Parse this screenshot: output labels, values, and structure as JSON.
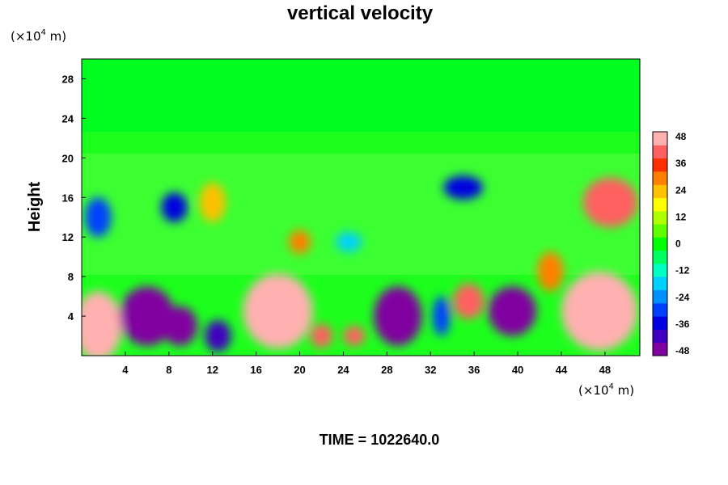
{
  "chart_data": {
    "type": "heatmap",
    "title": "vertical velocity",
    "ylabel": "Height",
    "y_unit": "(×10",
    "y_unit_exp": "4",
    "y_unit_tail": " m)",
    "x_unit": "(×10",
    "x_unit_exp": "4",
    "x_unit_tail": " m)",
    "footer": "TIME = 1022640.0",
    "xlim": [
      0,
      51.2
    ],
    "ylim": [
      0,
      30
    ],
    "x_ticks": [
      "4",
      "8",
      "12",
      "16",
      "20",
      "24",
      "28",
      "32",
      "36",
      "40",
      "44",
      "48"
    ],
    "x_tick_values": [
      4,
      8,
      12,
      16,
      20,
      24,
      28,
      32,
      36,
      40,
      44,
      48
    ],
    "y_ticks": [
      "4",
      "8",
      "12",
      "16",
      "20",
      "24",
      "28"
    ],
    "y_tick_values": [
      4,
      8,
      12,
      16,
      20,
      24,
      28
    ],
    "colorbar": {
      "range": [
        -48,
        48
      ],
      "ticks": [
        "48",
        "36",
        "24",
        "12",
        "0",
        "-12",
        "-24",
        "-36",
        "-48"
      ],
      "tick_values": [
        48,
        36,
        24,
        12,
        0,
        -12,
        -24,
        -36,
        -48
      ],
      "colors": [
        "#8000a0",
        "#4000c0",
        "#0000e0",
        "#0040ff",
        "#0090ff",
        "#00d0ff",
        "#00ffc0",
        "#00ff60",
        "#00ff00",
        "#60ff00",
        "#b0ff00",
        "#ffff00",
        "#ffc000",
        "#ff8000",
        "#ff3000",
        "#ff6060",
        "#ffb0b0"
      ]
    },
    "regions": [
      {
        "cx": 1.5,
        "cy": 3.0,
        "rx": 2.2,
        "ry": 3.5,
        "value": 46
      },
      {
        "cx": 6.0,
        "cy": 4.0,
        "rx": 2.5,
        "ry": 3.0,
        "value": -48
      },
      {
        "cx": 9.0,
        "cy": 3.0,
        "rx": 1.6,
        "ry": 2.0,
        "value": -48
      },
      {
        "cx": 12.5,
        "cy": 2.0,
        "rx": 1.2,
        "ry": 1.6,
        "value": -44
      },
      {
        "cx": 18.0,
        "cy": 4.5,
        "rx": 3.2,
        "ry": 3.8,
        "value": 48
      },
      {
        "cx": 22.0,
        "cy": 2.0,
        "rx": 1.0,
        "ry": 1.2,
        "value": 44
      },
      {
        "cx": 25.0,
        "cy": 2.0,
        "rx": 1.0,
        "ry": 1.0,
        "value": 44
      },
      {
        "cx": 29.0,
        "cy": 4.0,
        "rx": 2.2,
        "ry": 3.0,
        "value": -48
      },
      {
        "cx": 33.0,
        "cy": 4.0,
        "rx": 0.8,
        "ry": 2.0,
        "value": -30
      },
      {
        "cx": 35.5,
        "cy": 5.5,
        "rx": 1.4,
        "ry": 1.8,
        "value": 40
      },
      {
        "cx": 39.5,
        "cy": 4.5,
        "rx": 2.2,
        "ry": 2.5,
        "value": -48
      },
      {
        "cx": 47.5,
        "cy": 4.5,
        "rx": 3.5,
        "ry": 4.0,
        "value": 48
      },
      {
        "cx": 48.5,
        "cy": 15.5,
        "rx": 2.5,
        "ry": 2.5,
        "value": 44
      },
      {
        "cx": 12.0,
        "cy": 15.5,
        "rx": 1.2,
        "ry": 2.0,
        "value": 26
      },
      {
        "cx": 8.5,
        "cy": 15.0,
        "rx": 1.2,
        "ry": 1.5,
        "value": -34
      },
      {
        "cx": 1.5,
        "cy": 14.0,
        "rx": 1.2,
        "ry": 2.0,
        "value": -30
      },
      {
        "cx": 35.0,
        "cy": 17.0,
        "rx": 1.8,
        "ry": 1.2,
        "value": -34
      },
      {
        "cx": 43.0,
        "cy": 8.5,
        "rx": 1.2,
        "ry": 2.0,
        "value": 30
      },
      {
        "cx": 20.0,
        "cy": 11.5,
        "rx": 1.0,
        "ry": 1.2,
        "value": 30
      },
      {
        "cx": 24.5,
        "cy": 11.5,
        "rx": 1.2,
        "ry": 1.0,
        "value": -20
      }
    ]
  }
}
